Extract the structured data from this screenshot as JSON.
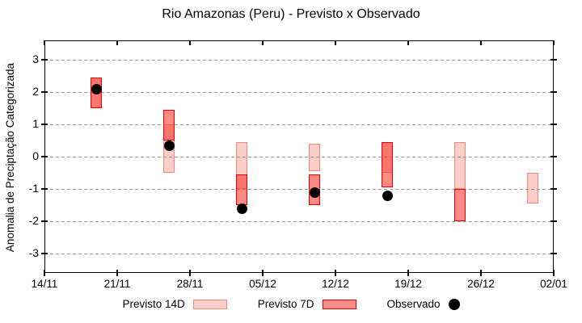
{
  "title": "Rio Amazonas (Peru) - Previsto x Observado",
  "y_axis": {
    "label": "Anomalia de Preciptação Categorizada",
    "ticks": [
      3,
      2,
      1,
      0,
      -1,
      -2,
      -3
    ]
  },
  "x_axis": {
    "ticks": [
      "14/11",
      "21/11",
      "28/11",
      "05/12",
      "12/12",
      "19/12",
      "26/12",
      "02/01"
    ]
  },
  "legend": {
    "items": [
      {
        "label": "Previsto 14D",
        "swatch": "pink-box"
      },
      {
        "label": "Previsto 7D",
        "swatch": "red-box"
      },
      {
        "label": "Observado",
        "swatch": "black-dot"
      }
    ]
  },
  "colors": {
    "previsto_14d_fill": "#fbcdc5",
    "previsto_14d_border": "#f08878",
    "previsto_7d_fill": "#fd8a82",
    "previsto_7d_overlap_fill": "#f55c55",
    "previsto_7d_border": "#e60000",
    "observado": "#000000",
    "grid": "#9a9a9a",
    "axis": "#000000"
  },
  "chart_data": {
    "type": "bar",
    "subtype": "forecast-range-bars-with-observed-scatter",
    "title": "Rio Amazonas (Peru) - Previsto x Observado",
    "xlabel": "",
    "ylabel": "Anomalia de Preciptação Categorizada",
    "ylim": [
      -3.6,
      3.6
    ],
    "y_ticks": [
      3,
      2,
      1,
      0,
      -1,
      -2,
      -3
    ],
    "grid": "horizontal-dashed",
    "legend_position": "bottom",
    "x_tick_labels": [
      "14/11",
      "21/11",
      "28/11",
      "05/12",
      "12/12",
      "19/12",
      "26/12",
      "02/01"
    ],
    "x_total_days": 49,
    "categories": [
      "19/11",
      "26/11",
      "03/12",
      "10/12",
      "17/12",
      "24/12",
      "31/12"
    ],
    "x_day_offsets": [
      5,
      12,
      19,
      26,
      33,
      40,
      47
    ],
    "series": [
      {
        "name": "Previsto 14D",
        "kind": "range",
        "ranges": [
          [
            1.5,
            2.45
          ],
          [
            -0.5,
            1.0
          ],
          [
            -1.0,
            0.45
          ],
          [
            -0.45,
            0.4
          ],
          [
            -0.5,
            0.45
          ],
          [
            -1.0,
            0.45
          ],
          [
            -1.45,
            -0.5
          ]
        ]
      },
      {
        "name": "Previsto 7D",
        "kind": "range",
        "ranges": [
          [
            1.5,
            2.45
          ],
          [
            0.5,
            1.45
          ],
          [
            -1.5,
            -0.55
          ],
          [
            -1.5,
            -0.55
          ],
          [
            -0.95,
            0.45
          ],
          [
            -2.0,
            -1.0
          ],
          null
        ]
      },
      {
        "name": "Observado",
        "kind": "scatter",
        "values": [
          2.1,
          0.35,
          -1.6,
          -1.1,
          -1.2,
          null,
          null
        ]
      }
    ]
  }
}
